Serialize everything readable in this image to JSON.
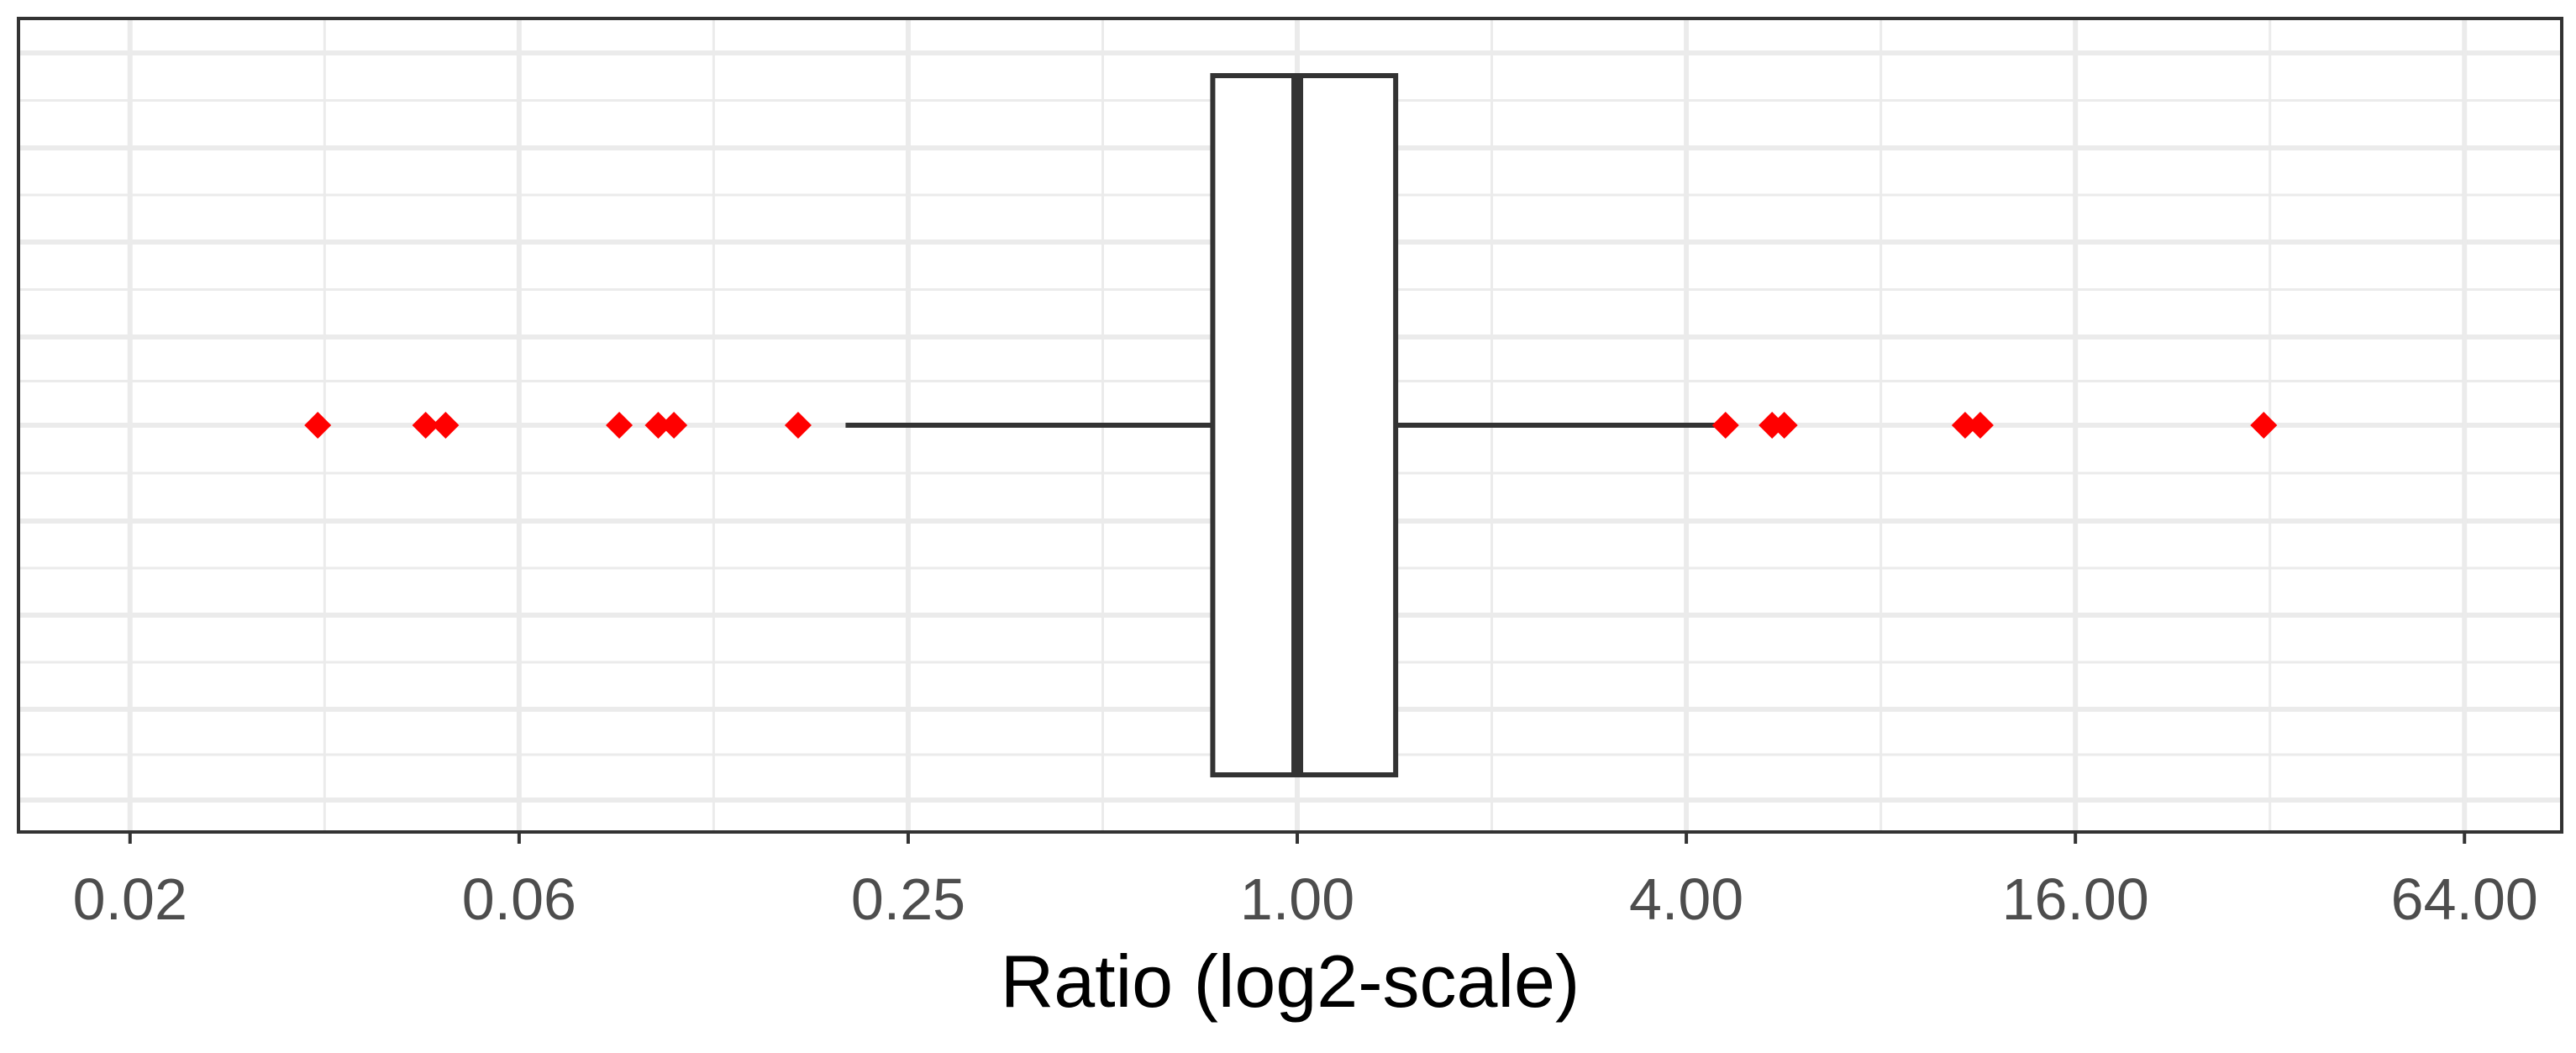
{
  "chart_data": {
    "type": "boxplot",
    "title": "",
    "xlabel": "Ratio (log2-scale)",
    "ylabel": "",
    "x_scale": "log2",
    "xlim": [
      0.0105,
      90.5
    ],
    "x_ticks": [
      0.015625,
      0.0625,
      0.25,
      1,
      4,
      16,
      64
    ],
    "x_tick_labels": [
      "0.02",
      "0.06",
      "0.25",
      "1.00",
      "4.00",
      "16.00",
      "64.00"
    ],
    "grid": true,
    "box": {
      "q1": 0.74,
      "median": 1.0,
      "q3": 1.42,
      "whisker_low": 0.2,
      "whisker_high": 4.6
    },
    "outliers": [
      0.0305,
      0.0448,
      0.0481,
      0.0893,
      0.1026,
      0.1085,
      0.1689,
      4.6,
      5.43,
      5.67,
      10.8,
      11.4,
      31.3
    ],
    "colors": {
      "outlier": "#ff0000",
      "box_stroke": "#333333",
      "grid": "#ebebeb",
      "panel_border": "#333333",
      "tick_label": "#4d4d4d",
      "axis_title": "#000000"
    }
  }
}
